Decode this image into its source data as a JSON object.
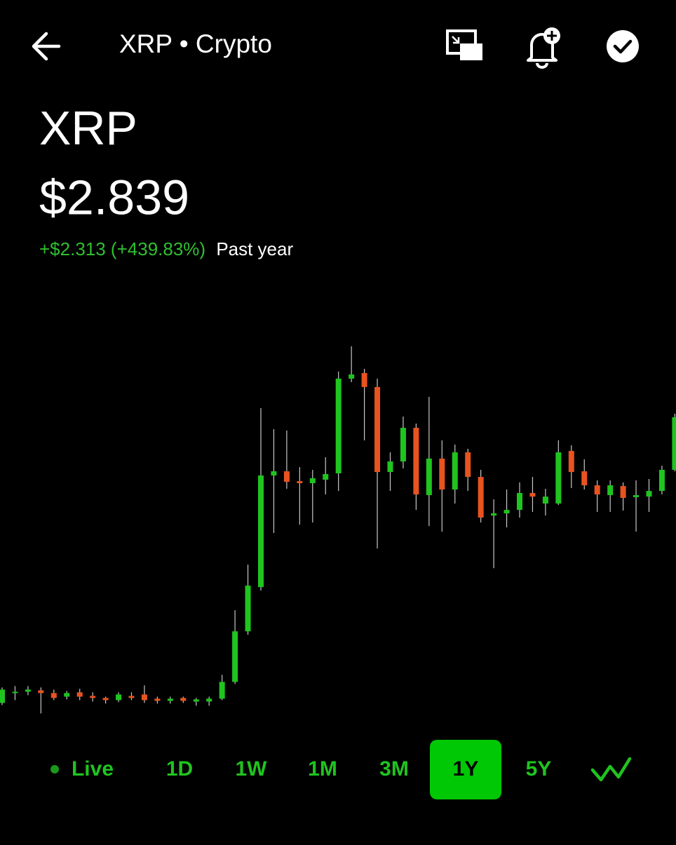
{
  "header": {
    "title": "XRP • Crypto"
  },
  "asset": {
    "name": "XRP",
    "price": "$2.839",
    "change": "+$2.313 (+439.83%)",
    "period": "Past year"
  },
  "chart_data": {
    "type": "candlestick",
    "open": [
      0.456,
      0.538,
      0.549,
      0.561,
      0.538,
      0.508,
      0.544,
      0.514,
      0.497,
      0.479,
      0.514,
      0.526,
      0.491,
      0.473,
      0.497,
      0.467,
      0.467,
      0.491,
      0.631,
      1.053,
      1.422,
      2.353,
      2.388,
      2.306,
      2.289,
      2.318,
      2.371,
      3.161,
      3.208,
      3.091,
      2.382,
      2.47,
      2.751,
      2.189,
      2.494,
      2.236,
      2.546,
      2.341,
      2.019,
      2.037,
      2.066,
      2.207,
      2.119,
      2.119,
      2.558,
      2.388,
      2.271,
      2.189,
      2.265,
      2.172,
      2.177,
      2.224,
      2.4
    ],
    "high": [
      0.585,
      0.596,
      0.596,
      0.585,
      0.567,
      0.555,
      0.573,
      0.544,
      0.508,
      0.544,
      0.544,
      0.602,
      0.508,
      0.508,
      0.508,
      0.497,
      0.508,
      0.69,
      1.229,
      1.609,
      2.915,
      2.74,
      2.728,
      2.423,
      2.4,
      2.505,
      3.22,
      3.431,
      3.243,
      3.161,
      2.546,
      2.845,
      2.786,
      3.009,
      2.646,
      2.611,
      2.576,
      2.4,
      2.154,
      2.236,
      2.295,
      2.341,
      2.242,
      2.646,
      2.605,
      2.488,
      2.312,
      2.312,
      2.295,
      2.312,
      2.324,
      2.435,
      2.868
    ],
    "low": [
      0.438,
      0.479,
      0.52,
      0.368,
      0.479,
      0.485,
      0.479,
      0.467,
      0.45,
      0.462,
      0.479,
      0.456,
      0.45,
      0.45,
      0.456,
      0.432,
      0.432,
      0.479,
      0.614,
      1.024,
      1.393,
      1.873,
      2.242,
      1.943,
      1.961,
      2.195,
      2.224,
      3.132,
      2.646,
      1.744,
      2.224,
      2.412,
      2.066,
      1.931,
      1.885,
      2.119,
      2.224,
      1.961,
      1.58,
      1.92,
      2.002,
      2.049,
      2.019,
      2.107,
      2.248,
      2.236,
      2.049,
      2.049,
      2.06,
      1.885,
      2.049,
      2.195,
      2.388
    ],
    "close": [
      0.567,
      0.549,
      0.567,
      0.538,
      0.497,
      0.538,
      0.508,
      0.497,
      0.479,
      0.526,
      0.497,
      0.479,
      0.473,
      0.491,
      0.473,
      0.485,
      0.491,
      0.631,
      1.053,
      1.434,
      2.353,
      2.388,
      2.3,
      2.289,
      2.33,
      2.365,
      3.161,
      3.196,
      3.091,
      2.382,
      2.47,
      2.751,
      2.195,
      2.494,
      2.236,
      2.546,
      2.341,
      2.002,
      2.037,
      2.066,
      2.207,
      2.177,
      2.177,
      2.546,
      2.382,
      2.271,
      2.195,
      2.271,
      2.166,
      2.189,
      2.224,
      2.4,
      2.839
    ],
    "ylim": [
      0.3,
      3.5
    ],
    "up_color": "#1fc41f",
    "down_color": "#e8531f",
    "wick_color": "#c8c8c8"
  },
  "ranges": {
    "labels": [
      "Live",
      "1D",
      "1W",
      "1M",
      "3M",
      "1Y",
      "5Y"
    ],
    "selected_index": 5
  }
}
